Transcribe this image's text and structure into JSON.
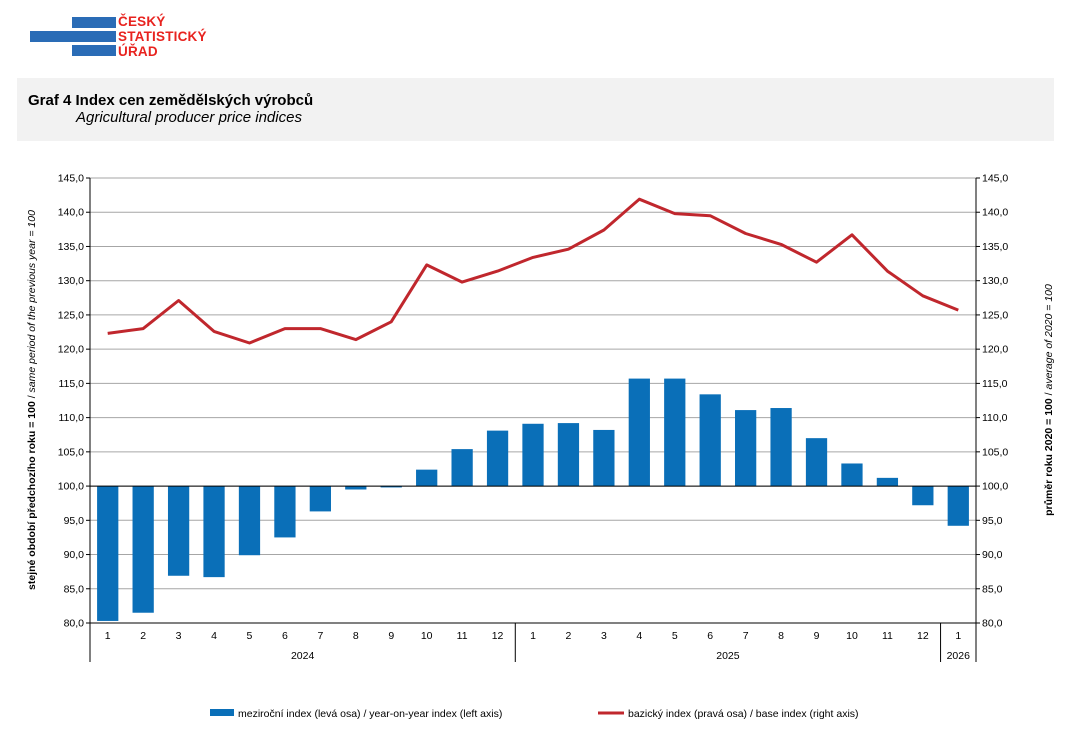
{
  "logo": {
    "line1": "ČESKÝ",
    "line2": "STATISTICKÝ",
    "line3": "ÚŘAD"
  },
  "header": {
    "title": "Graf 4 Index cen zemědělských výrobců",
    "subtitle": "Agricultural producer price indices"
  },
  "colors": {
    "bar": "#0a6fb8",
    "line": "#c0272d",
    "grid": "#a6a6a6",
    "header_bg": "#f2f2f2",
    "logo_blue": "#2a6cb6",
    "logo_red": "#e8231f"
  },
  "chart_data": {
    "type": "bar+line",
    "categories": [
      "1",
      "2",
      "3",
      "4",
      "5",
      "6",
      "7",
      "8",
      "9",
      "10",
      "11",
      "12",
      "1",
      "2",
      "3",
      "4",
      "5",
      "6",
      "7",
      "8",
      "9",
      "10",
      "11",
      "12",
      "1"
    ],
    "years": [
      {
        "label": "2024",
        "count": 12
      },
      {
        "label": "2025",
        "count": 12
      },
      {
        "label": "2026",
        "count": 1
      }
    ],
    "left_axis": {
      "label_bold": "stejné období předchozího roku = 100",
      "label_sep": " / ",
      "label_italic": "same period of the previous year = 100",
      "ylim": [
        80,
        145
      ],
      "ticks": [
        "80,0",
        "85,0",
        "90,0",
        "95,0",
        "100,0",
        "105,0",
        "110,0",
        "115,0",
        "120,0",
        "125,0",
        "130,0",
        "135,0",
        "140,0",
        "145,0"
      ]
    },
    "right_axis": {
      "label_bold": "průměr roku 2020 = 100",
      "label_sep": " / ",
      "label_italic": "average of 2020 = 100",
      "ylim": [
        80,
        145
      ],
      "ticks": [
        "80,0",
        "85,0",
        "90,0",
        "95,0",
        "100,0",
        "105,0",
        "110,0",
        "115,0",
        "120,0",
        "125,0",
        "130,0",
        "135,0",
        "140,0",
        "145,0"
      ]
    },
    "baseline": 100,
    "series": [
      {
        "name": "meziroční index (levá osa) / year-on-year index (left axis)",
        "type": "bar",
        "axis": "left",
        "values": [
          80.3,
          81.5,
          86.9,
          86.7,
          89.9,
          92.5,
          96.3,
          99.5,
          99.8,
          102.4,
          105.4,
          108.1,
          109.1,
          109.2,
          108.2,
          115.7,
          115.7,
          113.4,
          111.1,
          111.4,
          107.0,
          103.3,
          101.2,
          97.2,
          94.2
        ]
      },
      {
        "name": "bazický index (pravá osa) / base index (right axis)",
        "type": "line",
        "axis": "right",
        "values": [
          122.3,
          123.0,
          127.1,
          122.6,
          120.9,
          123.0,
          123.0,
          121.4,
          124.0,
          132.3,
          129.8,
          131.4,
          133.4,
          134.6,
          137.4,
          141.9,
          139.8,
          139.5,
          136.9,
          135.3,
          132.7,
          136.7,
          131.4,
          127.8,
          125.7
        ]
      }
    ]
  }
}
